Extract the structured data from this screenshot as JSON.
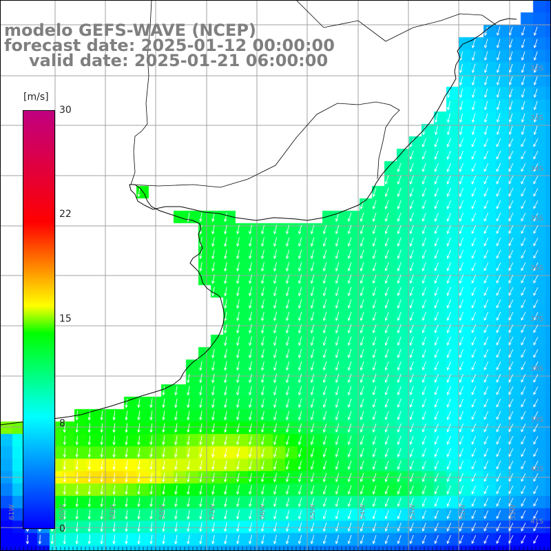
{
  "title": {
    "line1": "modelo GEFS-WAVE (NCEP)",
    "line2": "forecast date: 2025-01-12 00:00:00",
    "line3": "valid date: 2025-01-21 06:00:00"
  },
  "colorbar": {
    "unit": "[m/s]",
    "ticks": [
      "30",
      "22",
      "15",
      "8",
      "0"
    ],
    "range": [
      0,
      30
    ],
    "colors": [
      "#0000ff",
      "#00ffff",
      "#00ff00",
      "#ffff00",
      "#ff0000",
      "#c00080"
    ]
  },
  "axes": {
    "lat_labels": [
      "32S",
      "33S",
      "34S",
      "35S",
      "36S",
      "37S",
      "38S",
      "39S",
      "40S",
      "41S"
    ],
    "lon_labels": [
      "61W",
      "60W",
      "59W",
      "58W",
      "57W",
      "56W",
      "55W",
      "54W",
      "53W",
      "52W",
      "51W"
    ]
  },
  "map": {
    "variable": "wind speed and direction",
    "land_color": "#ffffff",
    "coastline_color": "#000000",
    "grid_color": "#a0a0a0"
  }
}
